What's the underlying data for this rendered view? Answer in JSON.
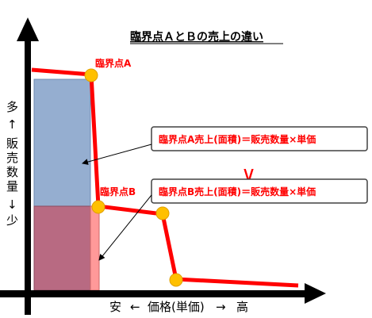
{
  "title": "臨界点ＡとＢの売上の違い",
  "point_a_label": "臨界点A",
  "point_b_label": "臨界点B",
  "y_axis": {
    "top": "多",
    "arrow_up": "↑",
    "label_chars": [
      "販",
      "売",
      "数",
      "量"
    ],
    "arrow_down": "↓",
    "bottom": "少"
  },
  "x_axis": {
    "left": "安",
    "arrow_left": "←",
    "label": "価格(単価)",
    "arrow_right": "→",
    "right": "高"
  },
  "box_a_text": "臨界点A売上(面積)＝販売数量×単価",
  "box_b_text": "臨界点B売上(面積)＝販売数量×単価",
  "comparison_symbol": "∨",
  "colors": {
    "curve": "#ff0000",
    "point": "#ffc000",
    "area_a": "#95aed0",
    "area_b": "#b86a82",
    "area_b_extra": "#ff9999"
  }
}
